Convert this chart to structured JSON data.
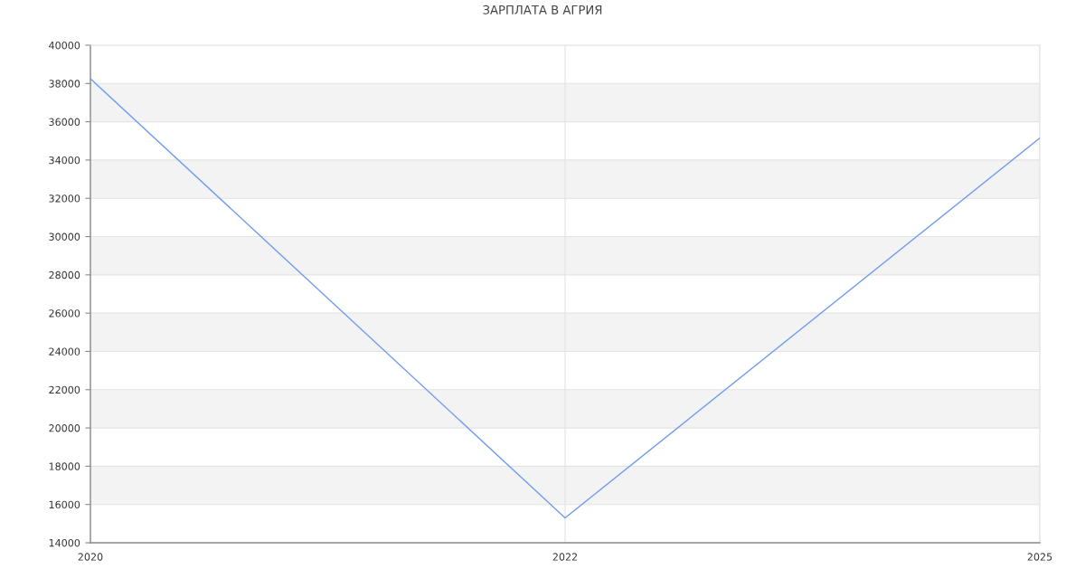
{
  "chart_data": {
    "type": "line",
    "title": "ЗАРПЛАТА В АГРИЯ",
    "categories": [
      "2020",
      "2022",
      "2025"
    ],
    "series": [
      {
        "color": "#6f9bef",
        "values": [
          38250,
          15300,
          35150
        ]
      }
    ],
    "ylim": [
      14000,
      40000
    ],
    "yticks": [
      14000,
      16000,
      18000,
      20000,
      22000,
      24000,
      26000,
      28000,
      30000,
      32000,
      34000,
      36000,
      38000,
      40000
    ],
    "bands": [
      {
        "axis": "y",
        "from": 16000,
        "to": 18000,
        "color": "#f3f3f3"
      },
      {
        "axis": "y",
        "from": 20000,
        "to": 22000,
        "color": "#f3f3f3"
      },
      {
        "axis": "y",
        "from": 24000,
        "to": 26000,
        "color": "#f3f3f3"
      },
      {
        "axis": "y",
        "from": 28000,
        "to": 30000,
        "color": "#f3f3f3"
      },
      {
        "axis": "y",
        "from": 32000,
        "to": 34000,
        "color": "#f3f3f3"
      },
      {
        "axis": "y",
        "from": 36000,
        "to": 38000,
        "color": "#f3f3f3"
      }
    ],
    "grid": true,
    "marker": "none",
    "line_style": "solid"
  }
}
